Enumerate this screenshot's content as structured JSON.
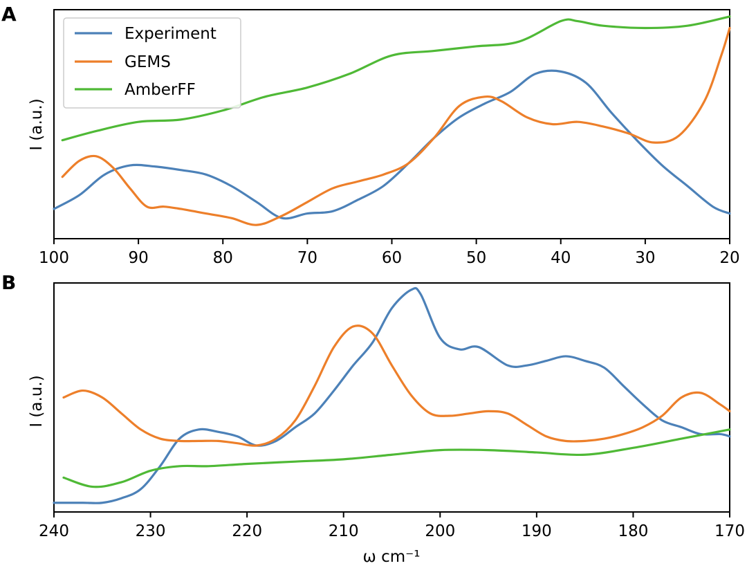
{
  "chart_data": [
    {
      "panel": "A",
      "type": "line",
      "xlabel": "",
      "ylabel": "I (a.u.)",
      "xlim": [
        100,
        20
      ],
      "ylim": [
        0,
        1
      ],
      "xticks": [
        100,
        90,
        80,
        70,
        60,
        50,
        40,
        30,
        20
      ],
      "legend": {
        "position": "top-left",
        "entries": [
          "Experiment",
          "GEMS",
          "AmberFF"
        ]
      },
      "series": [
        {
          "name": "Experiment",
          "color": "#4c81b8",
          "x": [
            100,
            97,
            94,
            91,
            88,
            85,
            82,
            79,
            76,
            73,
            70,
            67,
            64,
            61,
            58,
            55,
            52,
            49,
            46,
            43,
            40,
            37,
            34,
            31,
            28,
            25,
            22,
            20
          ],
          "y": [
            0.13,
            0.19,
            0.28,
            0.32,
            0.315,
            0.3,
            0.28,
            0.23,
            0.16,
            0.09,
            0.11,
            0.12,
            0.17,
            0.23,
            0.33,
            0.44,
            0.53,
            0.59,
            0.64,
            0.72,
            0.73,
            0.68,
            0.55,
            0.43,
            0.32,
            0.23,
            0.14,
            0.11
          ]
        },
        {
          "name": "GEMS",
          "color": "#ed7f2a",
          "x": [
            99,
            97,
            95,
            93,
            91,
            89,
            87,
            85,
            82,
            79,
            76,
            73,
            70,
            67,
            64,
            61,
            58,
            55,
            52,
            49,
            47,
            44,
            41,
            38,
            35,
            32,
            29,
            26,
            23,
            21,
            20
          ],
          "y": [
            0.27,
            0.34,
            0.36,
            0.31,
            0.22,
            0.14,
            0.14,
            0.13,
            0.11,
            0.09,
            0.06,
            0.1,
            0.16,
            0.22,
            0.25,
            0.28,
            0.33,
            0.44,
            0.58,
            0.62,
            0.6,
            0.53,
            0.5,
            0.51,
            0.49,
            0.46,
            0.42,
            0.45,
            0.6,
            0.8,
            0.92
          ]
        },
        {
          "name": "AmberFF",
          "color": "#4fb936",
          "x": [
            99,
            95,
            90,
            85,
            80,
            75,
            70,
            65,
            60,
            55,
            50,
            45,
            40,
            38,
            35,
            30,
            25,
            20
          ],
          "y": [
            0.43,
            0.47,
            0.51,
            0.52,
            0.56,
            0.62,
            0.66,
            0.72,
            0.8,
            0.82,
            0.84,
            0.86,
            0.95,
            0.95,
            0.93,
            0.92,
            0.93,
            0.97
          ]
        }
      ]
    },
    {
      "panel": "B",
      "type": "line",
      "xlabel": "ω cm⁻¹",
      "ylabel": "I (a.u.)",
      "xlim": [
        240,
        170
      ],
      "ylim": [
        0,
        1
      ],
      "xticks": [
        240,
        230,
        220,
        210,
        200,
        190,
        180,
        170
      ],
      "series": [
        {
          "name": "Experiment",
          "color": "#4c81b8",
          "x": [
            240,
            237,
            235,
            233,
            231,
            229,
            227,
            225,
            223,
            221,
            219,
            217,
            215,
            213,
            211,
            209,
            207,
            205,
            203,
            202,
            200,
            198,
            196,
            193,
            191,
            189,
            187,
            185,
            183,
            181,
            179,
            177,
            175,
            173,
            171,
            170
          ],
          "y": [
            0.04,
            0.04,
            0.04,
            0.06,
            0.1,
            0.2,
            0.32,
            0.36,
            0.35,
            0.33,
            0.29,
            0.31,
            0.37,
            0.43,
            0.53,
            0.64,
            0.74,
            0.89,
            0.97,
            0.95,
            0.76,
            0.71,
            0.72,
            0.64,
            0.64,
            0.66,
            0.68,
            0.66,
            0.63,
            0.55,
            0.47,
            0.4,
            0.37,
            0.34,
            0.34,
            0.33
          ]
        },
        {
          "name": "GEMS",
          "color": "#ed7f2a",
          "x": [
            239,
            237,
            235,
            233,
            231,
            229,
            227,
            225,
            223,
            221,
            219,
            217,
            215,
            213,
            211,
            209,
            207,
            205,
            203,
            201,
            199,
            197,
            195,
            193,
            191,
            189,
            187,
            185,
            183,
            181,
            179,
            177,
            175,
            173,
            171,
            170
          ],
          "y": [
            0.5,
            0.53,
            0.5,
            0.43,
            0.36,
            0.32,
            0.31,
            0.31,
            0.31,
            0.3,
            0.29,
            0.32,
            0.4,
            0.55,
            0.72,
            0.81,
            0.78,
            0.64,
            0.51,
            0.43,
            0.42,
            0.43,
            0.44,
            0.43,
            0.38,
            0.33,
            0.31,
            0.31,
            0.32,
            0.34,
            0.37,
            0.42,
            0.5,
            0.52,
            0.47,
            0.44
          ]
        },
        {
          "name": "AmberFF",
          "color": "#4fb936",
          "x": [
            239,
            236,
            233,
            230,
            227,
            224,
            220,
            215,
            210,
            205,
            200,
            195,
            190,
            185,
            180,
            175,
            170
          ],
          "y": [
            0.15,
            0.11,
            0.13,
            0.18,
            0.2,
            0.2,
            0.21,
            0.22,
            0.23,
            0.25,
            0.27,
            0.27,
            0.26,
            0.25,
            0.28,
            0.32,
            0.36
          ]
        }
      ]
    }
  ],
  "panel_labels": [
    "A",
    "B"
  ],
  "tick_labels": {
    "A": [
      "100",
      "90",
      "80",
      "70",
      "60",
      "50",
      "40",
      "30",
      "20"
    ],
    "B": [
      "240",
      "230",
      "220",
      "210",
      "200",
      "190",
      "180",
      "170"
    ]
  }
}
